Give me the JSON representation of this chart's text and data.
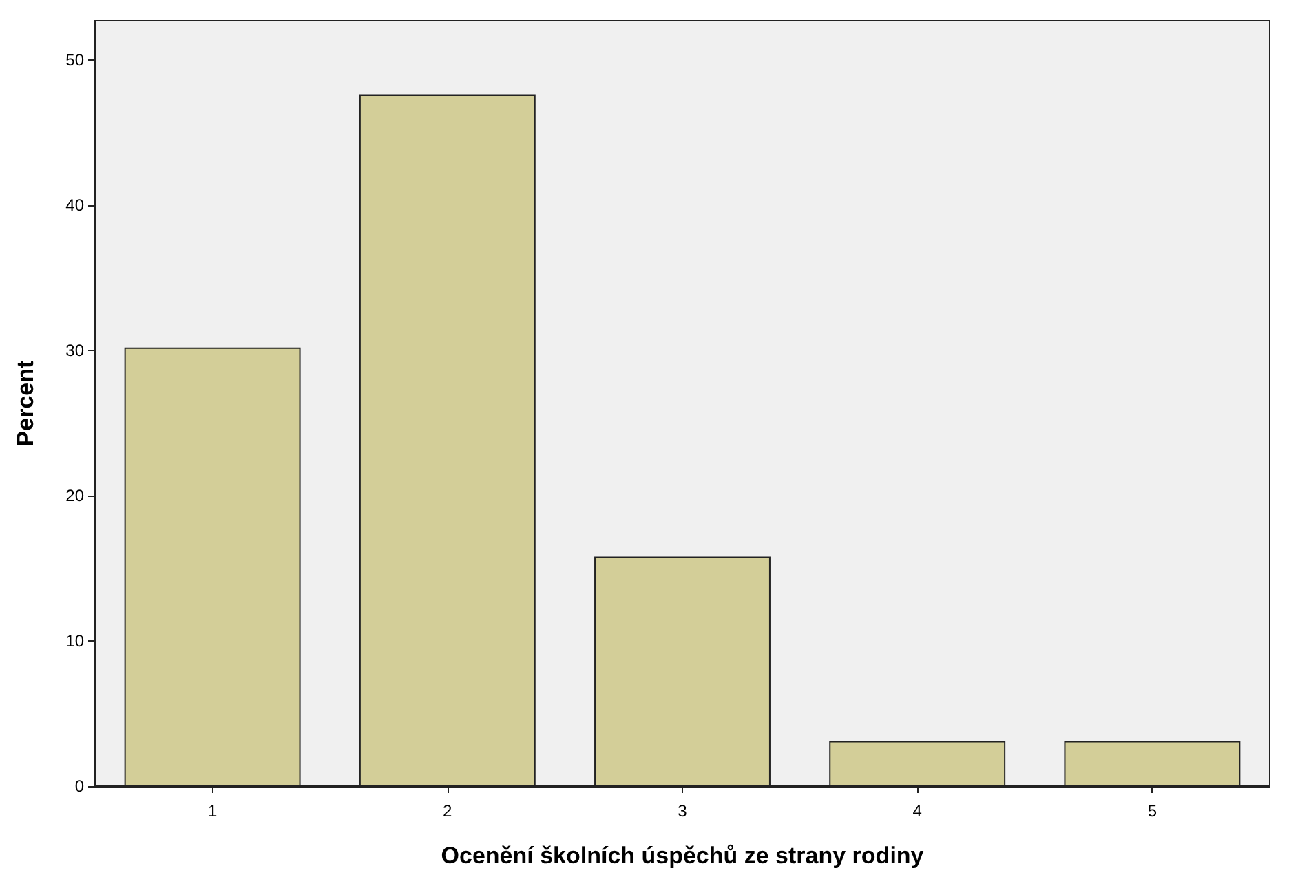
{
  "chart_data": {
    "type": "bar",
    "xlabel": "Ocenění školních úspěchů ze strany rodiny",
    "ylabel": "Percent",
    "categories": [
      "1",
      "2",
      "3",
      "4",
      "5"
    ],
    "values": [
      30.2,
      47.6,
      15.8,
      3.1,
      3.1
    ],
    "color": "#d3ce98",
    "ylim": [
      0,
      52.7
    ],
    "yticks": [
      0,
      10,
      20,
      30,
      40,
      50
    ],
    "grid": false
  }
}
